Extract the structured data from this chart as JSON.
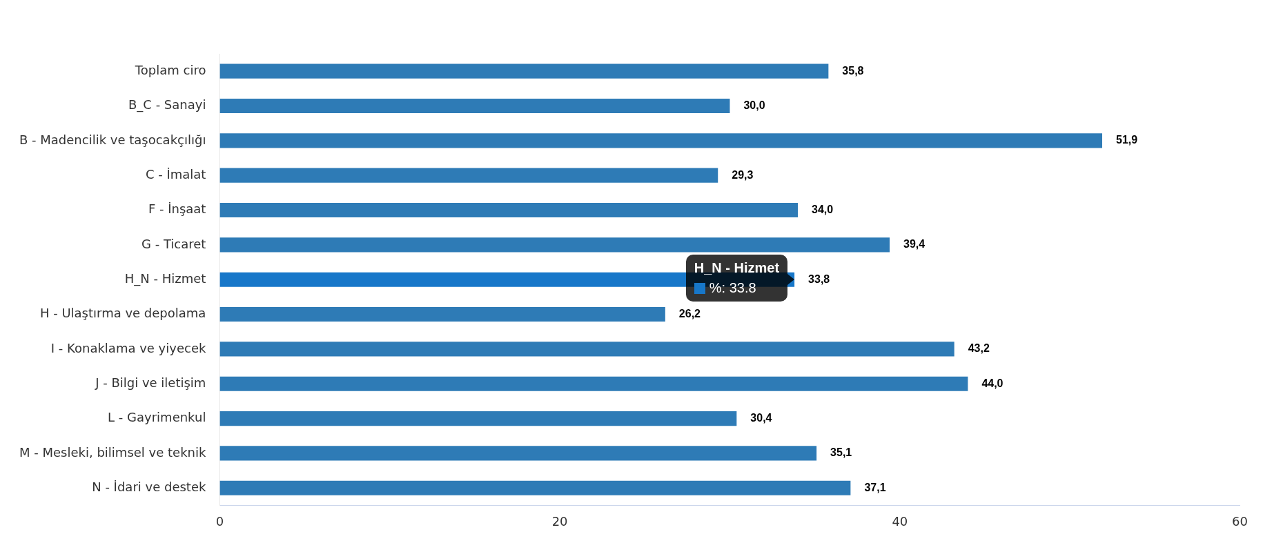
{
  "chart_data": {
    "type": "bar",
    "orientation": "horizontal",
    "categories": [
      "Toplam ciro",
      "B_C - Sanayi",
      "B - Madencilik ve taşocakçılığı",
      "C - İmalat",
      "F - İnşaat",
      "G - Ticaret",
      "H_N - Hizmet",
      "H - Ulaştırma ve depolama",
      "I - Konaklama ve yiyecek",
      "J - Bilgi ve iletişim",
      "L - Gayrimenkul",
      "M - Mesleki, bilimsel ve teknik",
      "N - İdari ve destek"
    ],
    "values": [
      35.8,
      30.0,
      51.9,
      29.3,
      34.0,
      39.4,
      33.8,
      26.2,
      43.2,
      44.0,
      30.4,
      35.1,
      37.1
    ],
    "value_labels": [
      "35,8",
      "30,0",
      "51,9",
      "29,3",
      "34,0",
      "39,4",
      "33,8",
      "26,2",
      "43,2",
      "44,0",
      "30,4",
      "35,1",
      "37,1"
    ],
    "colors": [
      "#2e7bb6",
      "#2e7bb6",
      "#2e7bb6",
      "#2e7bb6",
      "#2e7bb6",
      "#2e7bb6",
      "#1777c9",
      "#2e7bb6",
      "#2e7bb6",
      "#2e7bb6",
      "#2e7bb6",
      "#2e7bb6",
      "#2e7bb6"
    ],
    "xlim": [
      0,
      60
    ],
    "xticks": [
      0,
      20,
      40,
      60
    ],
    "grid": false,
    "legend": false,
    "annotations": [
      {
        "text": "H_N - Hizmet",
        "x": 33.8,
        "y": "H_N - Hizmet"
      },
      {
        "text": "%: 33.8",
        "x": 33.8,
        "y": "H_N - Hizmet"
      }
    ]
  }
}
